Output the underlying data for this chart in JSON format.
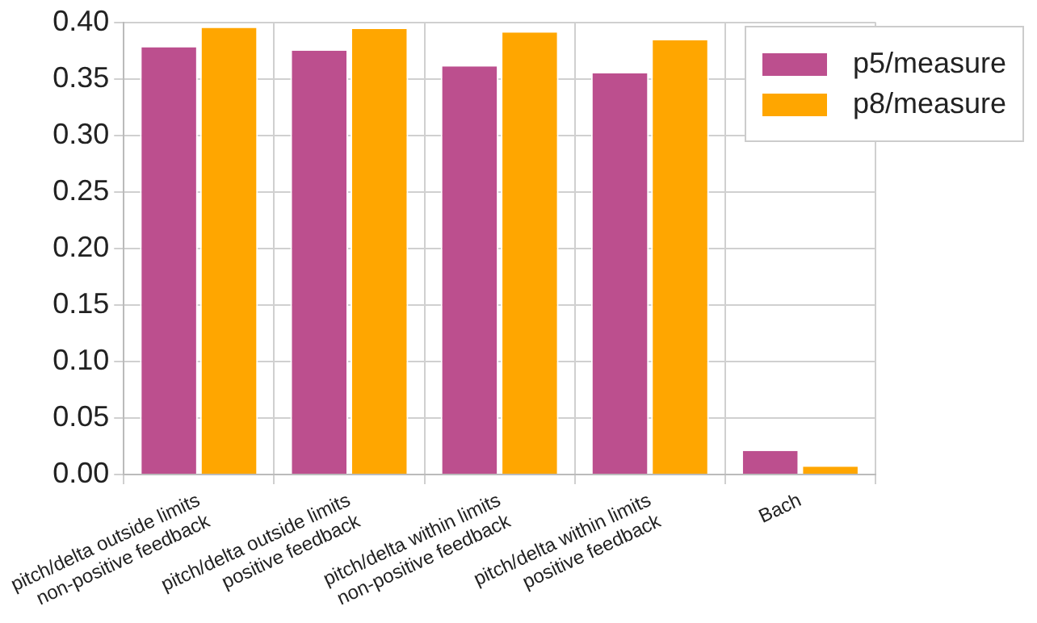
{
  "chart_data": {
    "type": "bar",
    "categories": [
      "pitch/delta outside limits\nnon-positive feedback",
      "pitch/delta outside limits\npositive feedback",
      "pitch/delta within limits\nnon-positive feedback",
      "pitch/delta within limits\npositive feedback",
      "Bach"
    ],
    "series": [
      {
        "name": "p5/measure",
        "color": "#bc4f8e",
        "values": [
          0.378,
          0.375,
          0.361,
          0.355,
          0.021
        ]
      },
      {
        "name": "p8/measure",
        "color": "#ffa600",
        "values": [
          0.395,
          0.394,
          0.391,
          0.384,
          0.007
        ]
      }
    ],
    "ylim": [
      0,
      0.4
    ],
    "yticks": [
      {
        "value": 0,
        "label": "0.00"
      },
      0.05,
      {
        "value": 0.1,
        "label": "0.10"
      },
      0.15,
      {
        "value": 0.2,
        "label": "0.20"
      },
      0.25,
      {
        "value": 0.3,
        "label": "0.30"
      },
      0.35,
      {
        "value": 0.4,
        "label": "0.40"
      }
    ],
    "grid": true,
    "legend": "top right"
  }
}
